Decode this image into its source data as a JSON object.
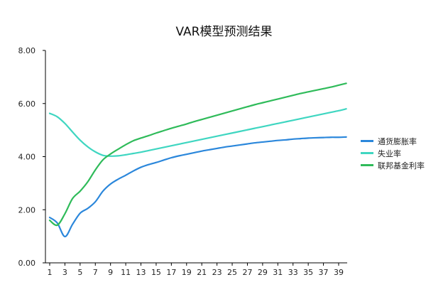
{
  "chart_data": {
    "type": "line",
    "title": "VAR模型预测结果",
    "xlabel": "",
    "ylabel": "",
    "ylim": [
      0,
      8
    ],
    "yticks": [
      "0.00",
      "2.00",
      "4.00",
      "6.00",
      "8.00"
    ],
    "xtick_labels": [
      "1",
      "3",
      "5",
      "7",
      "9",
      "11",
      "13",
      "15",
      "17",
      "19",
      "21",
      "23",
      "25",
      "27",
      "29",
      "31",
      "33",
      "35",
      "37",
      "39"
    ],
    "x": [
      1,
      2,
      3,
      4,
      5,
      6,
      7,
      8,
      9,
      10,
      11,
      12,
      13,
      14,
      15,
      16,
      17,
      18,
      19,
      20,
      21,
      22,
      23,
      24,
      25,
      26,
      27,
      28,
      29,
      30,
      31,
      32,
      33,
      34,
      35,
      36,
      37,
      38,
      39,
      40
    ],
    "grid": false,
    "legend_position": "right",
    "series": [
      {
        "name": "通货膨胀率",
        "color": "#2b87db",
        "values": [
          1.71,
          1.5,
          0.99,
          1.45,
          1.87,
          2.05,
          2.3,
          2.7,
          2.97,
          3.15,
          3.3,
          3.46,
          3.6,
          3.7,
          3.78,
          3.87,
          3.96,
          4.03,
          4.09,
          4.15,
          4.21,
          4.26,
          4.31,
          4.36,
          4.4,
          4.44,
          4.48,
          4.52,
          4.55,
          4.58,
          4.61,
          4.63,
          4.66,
          4.68,
          4.7,
          4.71,
          4.72,
          4.73,
          4.73,
          4.74
        ]
      },
      {
        "name": "失业率",
        "color": "#3fd6c1",
        "values": [
          5.63,
          5.5,
          5.25,
          4.93,
          4.62,
          4.37,
          4.18,
          4.05,
          4.02,
          4.03,
          4.07,
          4.12,
          4.17,
          4.23,
          4.29,
          4.35,
          4.41,
          4.47,
          4.53,
          4.59,
          4.65,
          4.71,
          4.77,
          4.83,
          4.89,
          4.95,
          5.01,
          5.07,
          5.13,
          5.19,
          5.25,
          5.31,
          5.37,
          5.43,
          5.49,
          5.55,
          5.61,
          5.67,
          5.73,
          5.8
        ]
      },
      {
        "name": "联邦基金利率",
        "color": "#2fbb5a",
        "values": [
          1.6,
          1.42,
          1.85,
          2.42,
          2.7,
          3.05,
          3.5,
          3.88,
          4.1,
          4.28,
          4.45,
          4.6,
          4.7,
          4.79,
          4.89,
          4.98,
          5.07,
          5.15,
          5.23,
          5.32,
          5.4,
          5.48,
          5.56,
          5.64,
          5.72,
          5.8,
          5.88,
          5.96,
          6.03,
          6.1,
          6.17,
          6.24,
          6.31,
          6.38,
          6.44,
          6.5,
          6.56,
          6.62,
          6.69,
          6.76
        ]
      }
    ]
  }
}
